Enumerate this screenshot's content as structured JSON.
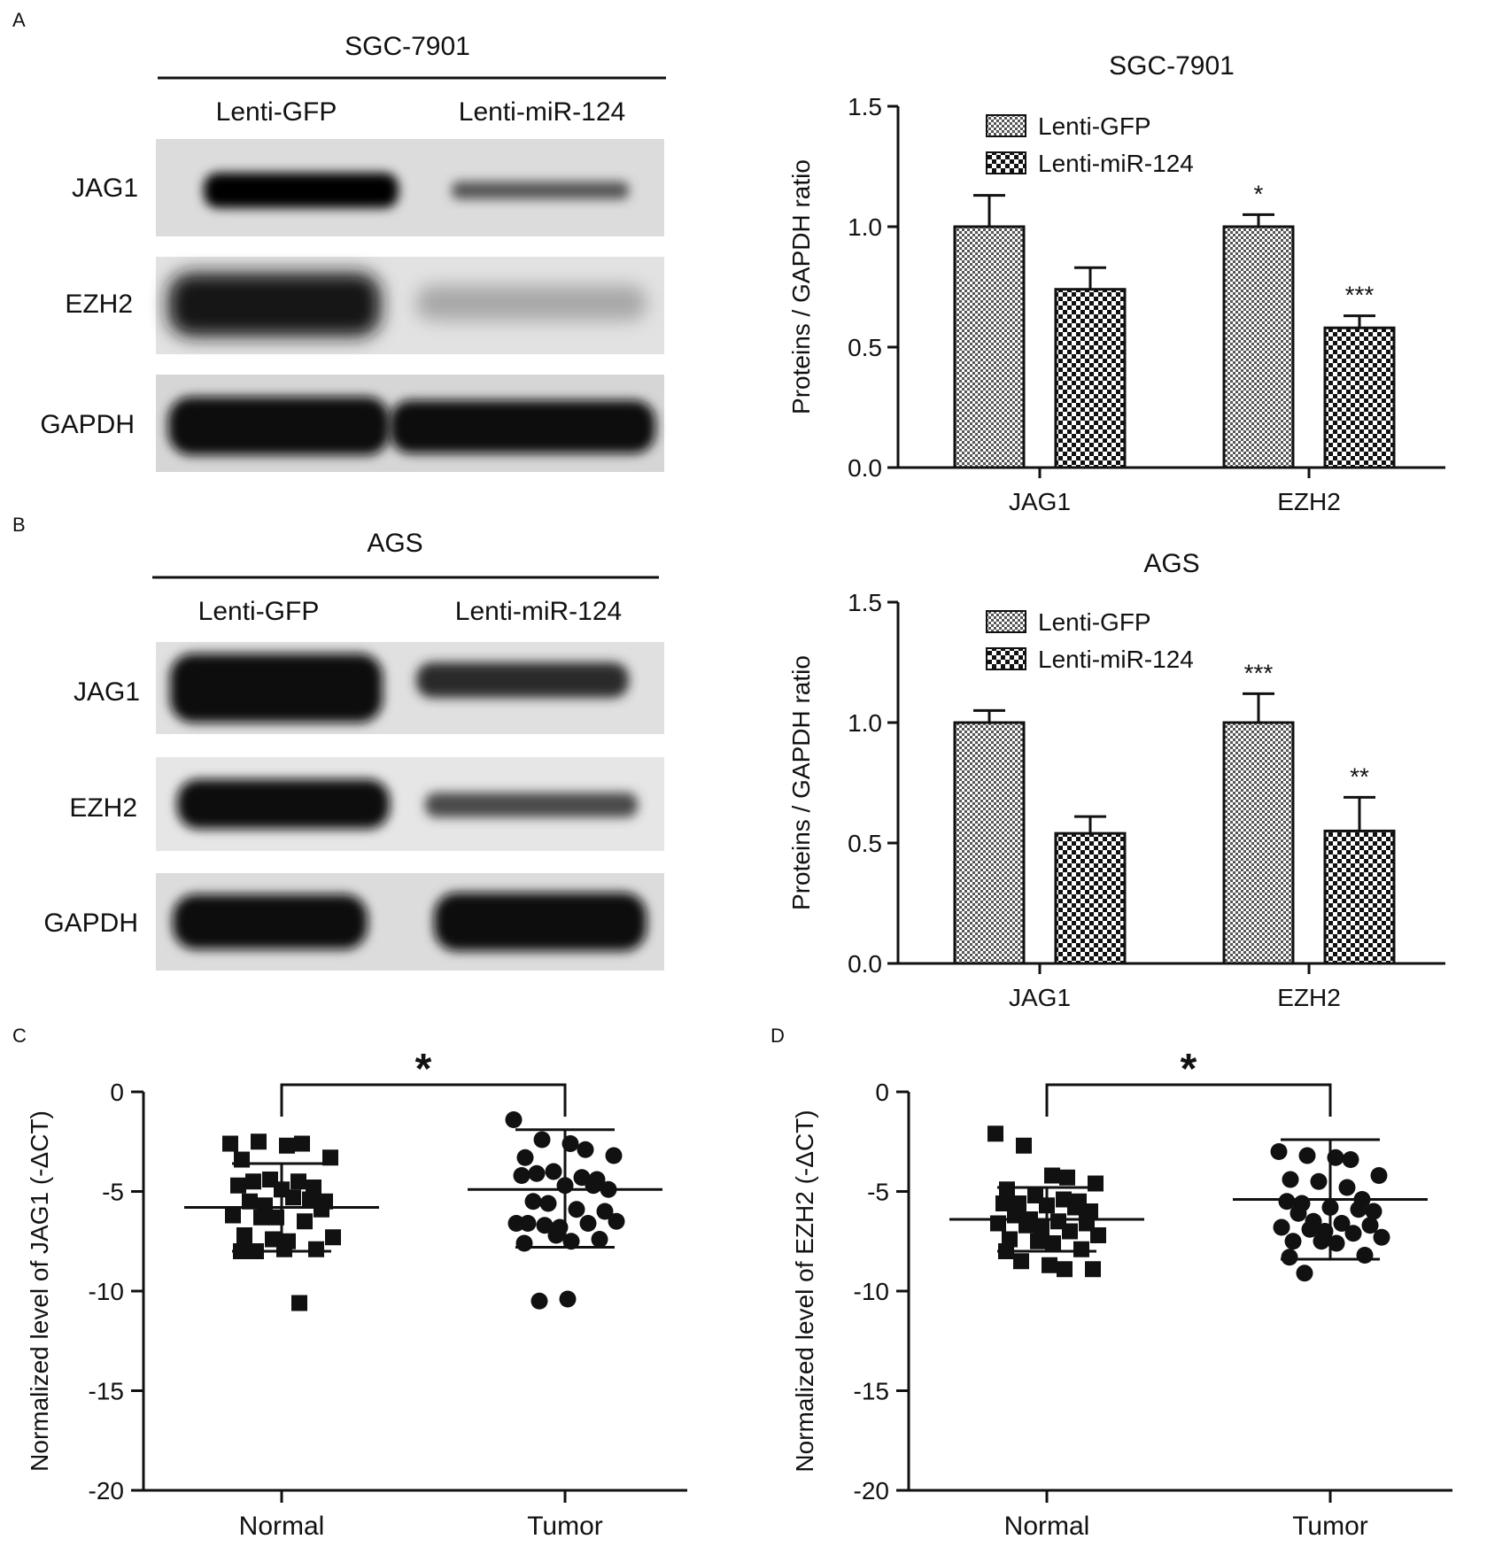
{
  "panel_letters": [
    "A",
    "B",
    "C",
    "D"
  ],
  "blots": [
    {
      "title": "SGC-7901",
      "lanes": [
        "Lenti-GFP",
        "Lenti-miR-124"
      ],
      "rows": [
        "JAG1",
        "EZH2",
        "GAPDH"
      ]
    },
    {
      "title": "AGS",
      "lanes": [
        "Lenti-GFP",
        "Lenti-miR-124"
      ],
      "rows": [
        "JAG1",
        "EZH2",
        "GAPDH"
      ]
    }
  ],
  "chart_data": [
    {
      "panel": "A",
      "type": "bar",
      "title": "SGC-7901",
      "ylabel": "Proteins / GAPDH ratio",
      "xlabel": "",
      "ylim": [
        0,
        1.5
      ],
      "yticks": [
        "0.0",
        "0.5",
        "1.0",
        "1.5"
      ],
      "categories": [
        "JAG1",
        "EZH2"
      ],
      "legend_position": "top-left",
      "series": [
        {
          "name": "Lenti-GFP",
          "values": [
            1.0,
            1.0
          ],
          "errors": [
            0.13,
            0.05
          ]
        },
        {
          "name": "Lenti-miR-124",
          "values": [
            0.74,
            0.58
          ],
          "errors": [
            0.09,
            0.05
          ]
        }
      ],
      "annotations": [
        "",
        "",
        "*",
        "***"
      ]
    },
    {
      "panel": "B",
      "type": "bar",
      "title": "AGS",
      "ylabel": "Proteins / GAPDH ratio",
      "xlabel": "",
      "ylim": [
        0,
        1.5
      ],
      "yticks": [
        "0.0",
        "0.5",
        "1.0",
        "1.5"
      ],
      "categories": [
        "JAG1",
        "EZH2"
      ],
      "legend_position": "top-left",
      "series": [
        {
          "name": "Lenti-GFP",
          "values": [
            1.0,
            1.0
          ],
          "errors": [
            0.05,
            0.12
          ]
        },
        {
          "name": "Lenti-miR-124",
          "values": [
            0.54,
            0.55
          ],
          "errors": [
            0.07,
            0.14
          ]
        }
      ],
      "annotations": [
        "",
        "",
        "***",
        "**"
      ]
    },
    {
      "panel": "C",
      "type": "scatter",
      "title": "",
      "ylabel": "Normalized level of JAG1 (-ΔCT)",
      "xlabel": "",
      "ylim": [
        -20,
        0
      ],
      "yticks": [
        "0",
        "-5",
        "-10",
        "-15",
        "-20"
      ],
      "categories": [
        "Normal",
        "Tumor"
      ],
      "significance": "*",
      "groups": [
        {
          "name": "Normal",
          "marker": "square",
          "mean": -5.8,
          "sd_low": -8.0,
          "sd_high": -3.6,
          "points": [
            -2.6,
            -2.5,
            -2.7,
            -2.6,
            -3.3,
            -3.4,
            -4.4,
            -4.5,
            -4.8,
            -4.7,
            -4.5,
            -4.9,
            -5.4,
            -5.5,
            -5.5,
            -5.7,
            -5.3,
            -5.9,
            -6.2,
            -6.3,
            -6.3,
            -6.5,
            -7.3,
            -7.2,
            -7.4,
            -7.5,
            -7.9,
            -8.0,
            -8.0,
            -7.9,
            -10.6
          ]
        },
        {
          "name": "Tumor",
          "marker": "circle",
          "mean": -4.9,
          "sd_low": -7.8,
          "sd_high": -1.9,
          "points": [
            -1.4,
            -2.4,
            -2.6,
            -2.9,
            -3.2,
            -3.3,
            -4.0,
            -4.3,
            -4.4,
            -4.2,
            -4.1,
            -4.7,
            -4.7,
            -4.9,
            -5.5,
            -5.6,
            -5.9,
            -6.0,
            -6.6,
            -6.7,
            -6.8,
            -6.6,
            -6.5,
            -6.6,
            -7.2,
            -7.5,
            -7.4,
            -7.6,
            -10.5,
            -10.4
          ]
        }
      ]
    },
    {
      "panel": "D",
      "type": "scatter",
      "title": "",
      "ylabel": "Normalized level of EZH2 (-ΔCT)",
      "xlabel": "",
      "ylim": [
        -20,
        0
      ],
      "yticks": [
        "0",
        "-5",
        "-10",
        "-15",
        "-20"
      ],
      "categories": [
        "Normal",
        "Tumor"
      ],
      "significance": "*",
      "groups": [
        {
          "name": "Normal",
          "marker": "square",
          "mean": -6.4,
          "sd_low": -8.0,
          "sd_high": -4.8,
          "points": [
            -2.1,
            -2.7,
            -4.2,
            -4.3,
            -4.6,
            -4.9,
            -5.2,
            -5.4,
            -5.5,
            -5.6,
            -5.6,
            -5.7,
            -5.8,
            -6.0,
            -6.2,
            -6.4,
            -6.5,
            -6.6,
            -6.6,
            -6.7,
            -6.8,
            -7.0,
            -7.2,
            -7.4,
            -7.5,
            -7.6,
            -7.9,
            -8.0,
            -8.5,
            -8.7,
            -8.9,
            -8.9
          ]
        },
        {
          "name": "Tumor",
          "marker": "circle",
          "mean": -5.4,
          "sd_low": -8.4,
          "sd_high": -2.4,
          "points": [
            -3.0,
            -3.2,
            -3.3,
            -3.4,
            -4.2,
            -4.4,
            -4.5,
            -4.8,
            -5.4,
            -5.5,
            -5.6,
            -5.8,
            -5.9,
            -6.0,
            -6.1,
            -6.5,
            -6.6,
            -6.7,
            -6.8,
            -6.9,
            -7.0,
            -7.1,
            -7.3,
            -7.5,
            -7.5,
            -7.6,
            -8.2,
            -8.3,
            -9.1
          ]
        }
      ]
    }
  ]
}
